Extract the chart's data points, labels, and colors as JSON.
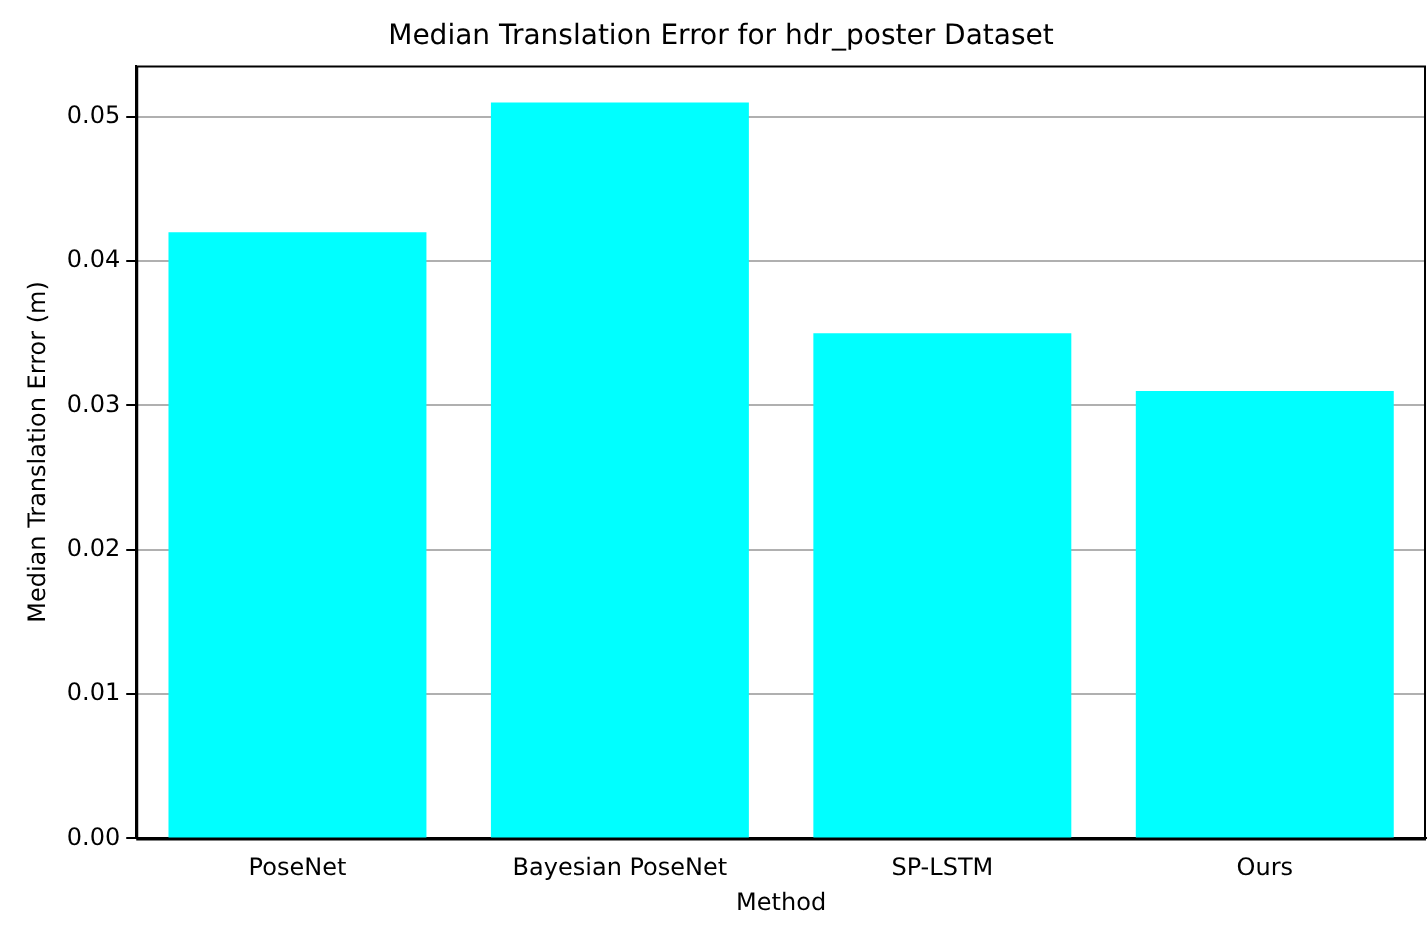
{
  "chart_data": {
    "type": "bar",
    "title": "Median Translation Error for hdr_poster Dataset",
    "xlabel": "Method",
    "ylabel": "Median Translation Error (m)",
    "categories": [
      "PoseNet",
      "Bayesian PoseNet",
      "SP-LSTM",
      "Ours"
    ],
    "values": [
      0.042,
      0.051,
      0.035,
      0.031
    ],
    "color": "#00ffff",
    "ylim": [
      0,
      0.05355
    ],
    "yticks": [
      {
        "value": 0,
        "label": "0.00"
      },
      {
        "value": 0.01,
        "label": "0.01"
      },
      {
        "value": 0.02,
        "label": "0.02"
      },
      {
        "value": 0.03,
        "label": "0.03"
      },
      {
        "value": 0.04,
        "label": "0.04"
      },
      {
        "value": 0.05,
        "label": "0.05"
      }
    ],
    "grid": "y"
  }
}
